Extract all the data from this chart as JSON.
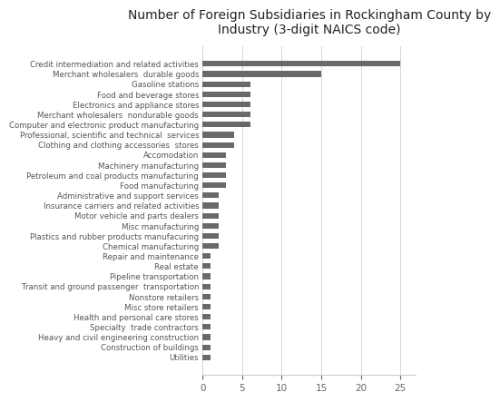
{
  "title": "Number of Foreign Subsidiaries in Rockingham County by\nIndustry (3-digit NAICS code)",
  "categories": [
    "Utilities",
    "Construction of buildings",
    "Heavy and civil engineering construction",
    "Specialty  trade contractors",
    "Health and personal care stores",
    "Misc store retailers",
    "Nonstore retailers",
    "Transit and ground passenger  transportation",
    "Pipeline transportation",
    "Real estate",
    "Repair and maintenance",
    "Chemical manufacturing",
    "Plastics and rubber products manufacuring",
    "Misc manufacturing",
    "Motor vehicle and parts dealers",
    "Insurance carriers and related activities",
    "Administrative and support services",
    "Food manufacturing",
    "Petroleum and coal products manufacturing",
    "Machinery manufacturing",
    "Accomodation",
    "Clothing and clothing accessories  stores",
    "Professional, scientific and technical  services",
    "Computer and electronic product manufacturing",
    "Merchant wholesalers  nondurable goods",
    "Electronics and appliance stores",
    "Food and beverage stores",
    "Gasoline stations",
    "Merchant wholesalers  durable goods",
    "Credit intermediation and related activities"
  ],
  "values": [
    1,
    1,
    1,
    1,
    1,
    1,
    1,
    1,
    1,
    1,
    1,
    2,
    2,
    2,
    2,
    2,
    2,
    3,
    3,
    3,
    3,
    4,
    4,
    6,
    6,
    6,
    6,
    6,
    15,
    25
  ],
  "bar_color": "#696969",
  "background_color": "#ffffff",
  "xlim": [
    0,
    27
  ],
  "xticks": [
    0,
    5,
    10,
    15,
    20,
    25
  ],
  "title_fontsize": 10,
  "label_fontsize": 6.2,
  "tick_fontsize": 7.5
}
